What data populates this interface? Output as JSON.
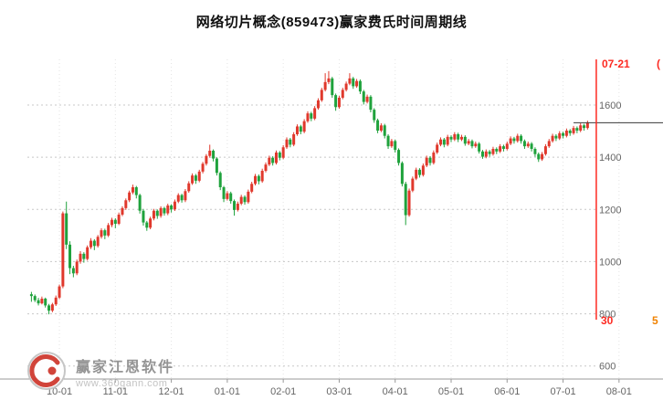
{
  "title": "网络切片概念(859473)赢家费氏时间周期线",
  "watermark": {
    "brand": "赢家江恩软件",
    "url": "www.360gann.com"
  },
  "colors": {
    "up": "#e0382c",
    "down": "#1fa23c",
    "grid": "#c8c8c8",
    "grid_v": "#e4e4e4",
    "axis": "#9a9a9a",
    "axis_text": "#666666",
    "last_price_line": "#3a3a3a",
    "cycle": "#fd2a22",
    "clipped_bottom": "#f08200"
  },
  "chart_data": {
    "type": "candlestick",
    "title": "网络切片概念(859473)赢家费氏时间周期线",
    "ylim": [
      550,
      1775
    ],
    "y_ticks": [
      1600,
      1400,
      1200,
      1000,
      800,
      600
    ],
    "x_ticks": [
      {
        "label": "10-01",
        "index": 8
      },
      {
        "label": "11-01",
        "index": 24
      },
      {
        "label": "12-01",
        "index": 40
      },
      {
        "label": "01-01",
        "index": 56
      },
      {
        "label": "02-01",
        "index": 72
      },
      {
        "label": "03-01",
        "index": 88
      },
      {
        "label": "04-01",
        "index": 104
      },
      {
        "label": "05-01",
        "index": 120
      },
      {
        "label": "06-01",
        "index": 136
      },
      {
        "label": "07-01",
        "index": 152
      },
      {
        "label": "08-01",
        "index": 168
      }
    ],
    "last_price": 1532,
    "fib_time_cycle": {
      "date_label": "07-21",
      "count_label": "30",
      "index": 161.5
    },
    "clipped_right_labels": {
      "top": "(",
      "bottom": "5"
    },
    "columns": [
      "open",
      "high",
      "low",
      "close"
    ],
    "candles": [
      [
        875,
        884,
        846,
        868
      ],
      [
        868,
        874,
        845,
        852
      ],
      [
        852,
        861,
        832,
        840
      ],
      [
        840,
        866,
        836,
        858
      ],
      [
        858,
        862,
        824,
        832
      ],
      [
        832,
        838,
        798,
        812
      ],
      [
        812,
        842,
        806,
        836
      ],
      [
        836,
        870,
        830,
        862
      ],
      [
        862,
        912,
        856,
        905
      ],
      [
        905,
        1192,
        898,
        1185
      ],
      [
        1185,
        1230,
        1048,
        1065
      ],
      [
        1065,
        1078,
        952,
        975
      ],
      [
        975,
        984,
        940,
        955
      ],
      [
        955,
        1008,
        948,
        1000
      ],
      [
        1000,
        1040,
        992,
        1030
      ],
      [
        1030,
        1036,
        996,
        1010
      ],
      [
        1010,
        1062,
        1004,
        1055
      ],
      [
        1055,
        1090,
        1048,
        1080
      ],
      [
        1080,
        1086,
        1044,
        1060
      ],
      [
        1060,
        1102,
        1054,
        1095
      ],
      [
        1095,
        1128,
        1088,
        1120
      ],
      [
        1120,
        1126,
        1086,
        1100
      ],
      [
        1100,
        1148,
        1094,
        1140
      ],
      [
        1140,
        1168,
        1132,
        1160
      ],
      [
        1160,
        1166,
        1128,
        1145
      ],
      [
        1145,
        1188,
        1140,
        1180
      ],
      [
        1180,
        1212,
        1174,
        1205
      ],
      [
        1205,
        1242,
        1198,
        1235
      ],
      [
        1235,
        1272,
        1228,
        1265
      ],
      [
        1265,
        1295,
        1258,
        1285
      ],
      [
        1285,
        1290,
        1242,
        1255
      ],
      [
        1255,
        1260,
        1184,
        1195
      ],
      [
        1195,
        1202,
        1138,
        1150
      ],
      [
        1150,
        1156,
        1118,
        1130
      ],
      [
        1130,
        1172,
        1124,
        1165
      ],
      [
        1165,
        1202,
        1158,
        1195
      ],
      [
        1195,
        1200,
        1164,
        1175
      ],
      [
        1175,
        1212,
        1168,
        1205
      ],
      [
        1205,
        1210,
        1176,
        1185
      ],
      [
        1185,
        1222,
        1178,
        1215
      ],
      [
        1215,
        1220,
        1188,
        1200
      ],
      [
        1200,
        1238,
        1194,
        1230
      ],
      [
        1230,
        1262,
        1224,
        1255
      ],
      [
        1255,
        1260,
        1226,
        1235
      ],
      [
        1235,
        1278,
        1228,
        1270
      ],
      [
        1270,
        1308,
        1264,
        1300
      ],
      [
        1300,
        1338,
        1294,
        1330
      ],
      [
        1330,
        1336,
        1298,
        1310
      ],
      [
        1310,
        1352,
        1304,
        1345
      ],
      [
        1345,
        1382,
        1338,
        1375
      ],
      [
        1375,
        1412,
        1368,
        1405
      ],
      [
        1405,
        1448,
        1398,
        1425
      ],
      [
        1425,
        1430,
        1384,
        1395
      ],
      [
        1395,
        1400,
        1330,
        1340
      ],
      [
        1340,
        1346,
        1274,
        1285
      ],
      [
        1285,
        1290,
        1228,
        1240
      ],
      [
        1240,
        1270,
        1234,
        1262
      ],
      [
        1262,
        1268,
        1222,
        1232
      ],
      [
        1232,
        1238,
        1176,
        1198
      ],
      [
        1198,
        1230,
        1192,
        1222
      ],
      [
        1222,
        1256,
        1216,
        1248
      ],
      [
        1248,
        1254,
        1218,
        1228
      ],
      [
        1228,
        1276,
        1222,
        1268
      ],
      [
        1268,
        1306,
        1262,
        1298
      ],
      [
        1298,
        1336,
        1292,
        1328
      ],
      [
        1328,
        1334,
        1296,
        1308
      ],
      [
        1308,
        1356,
        1302,
        1348
      ],
      [
        1348,
        1380,
        1342,
        1372
      ],
      [
        1372,
        1406,
        1366,
        1398
      ],
      [
        1398,
        1404,
        1368,
        1378
      ],
      [
        1378,
        1426,
        1372,
        1418
      ],
      [
        1418,
        1424,
        1388,
        1398
      ],
      [
        1398,
        1446,
        1392,
        1438
      ],
      [
        1438,
        1476,
        1432,
        1468
      ],
      [
        1468,
        1474,
        1438,
        1448
      ],
      [
        1448,
        1496,
        1442,
        1488
      ],
      [
        1488,
        1526,
        1482,
        1518
      ],
      [
        1518,
        1524,
        1488,
        1498
      ],
      [
        1498,
        1546,
        1492,
        1538
      ],
      [
        1538,
        1576,
        1532,
        1568
      ],
      [
        1568,
        1574,
        1538,
        1548
      ],
      [
        1548,
        1596,
        1542,
        1588
      ],
      [
        1588,
        1626,
        1582,
        1618
      ],
      [
        1618,
        1666,
        1612,
        1658
      ],
      [
        1658,
        1722,
        1652,
        1688
      ],
      [
        1688,
        1730,
        1680,
        1702
      ],
      [
        1702,
        1708,
        1628,
        1638
      ],
      [
        1638,
        1644,
        1578,
        1592
      ],
      [
        1592,
        1636,
        1586,
        1628
      ],
      [
        1628,
        1666,
        1622,
        1658
      ],
      [
        1658,
        1690,
        1652,
        1682
      ],
      [
        1682,
        1722,
        1676,
        1702
      ],
      [
        1702,
        1708,
        1662,
        1672
      ],
      [
        1672,
        1700,
        1666,
        1692
      ],
      [
        1692,
        1698,
        1642,
        1652
      ],
      [
        1652,
        1658,
        1602,
        1612
      ],
      [
        1612,
        1640,
        1606,
        1632
      ],
      [
        1632,
        1638,
        1572,
        1582
      ],
      [
        1582,
        1588,
        1532,
        1542
      ],
      [
        1542,
        1548,
        1492,
        1502
      ],
      [
        1502,
        1530,
        1496,
        1522
      ],
      [
        1522,
        1528,
        1472,
        1482
      ],
      [
        1482,
        1488,
        1432,
        1442
      ],
      [
        1442,
        1470,
        1436,
        1462
      ],
      [
        1462,
        1468,
        1418,
        1428
      ],
      [
        1428,
        1434,
        1368,
        1378
      ],
      [
        1378,
        1384,
        1288,
        1298
      ],
      [
        1298,
        1306,
        1140,
        1178
      ],
      [
        1178,
        1280,
        1172,
        1272
      ],
      [
        1272,
        1326,
        1266,
        1318
      ],
      [
        1318,
        1360,
        1312,
        1352
      ],
      [
        1352,
        1358,
        1322,
        1332
      ],
      [
        1332,
        1376,
        1326,
        1368
      ],
      [
        1368,
        1406,
        1362,
        1398
      ],
      [
        1398,
        1404,
        1368,
        1378
      ],
      [
        1378,
        1426,
        1372,
        1418
      ],
      [
        1418,
        1456,
        1412,
        1448
      ],
      [
        1448,
        1476,
        1442,
        1468
      ],
      [
        1468,
        1474,
        1438,
        1448
      ],
      [
        1448,
        1486,
        1442,
        1478
      ],
      [
        1478,
        1484,
        1458,
        1468
      ],
      [
        1468,
        1496,
        1462,
        1488
      ],
      [
        1488,
        1494,
        1458,
        1468
      ],
      [
        1468,
        1486,
        1462,
        1478
      ],
      [
        1478,
        1484,
        1444,
        1452
      ],
      [
        1452,
        1470,
        1446,
        1462
      ],
      [
        1462,
        1468,
        1434,
        1442
      ],
      [
        1442,
        1460,
        1436,
        1452
      ],
      [
        1452,
        1458,
        1414,
        1422
      ],
      [
        1422,
        1428,
        1394,
        1402
      ],
      [
        1402,
        1430,
        1396,
        1422
      ],
      [
        1422,
        1428,
        1402,
        1412
      ],
      [
        1412,
        1440,
        1406,
        1432
      ],
      [
        1432,
        1438,
        1412,
        1422
      ],
      [
        1422,
        1450,
        1416,
        1442
      ],
      [
        1442,
        1448,
        1422,
        1432
      ],
      [
        1432,
        1460,
        1426,
        1452
      ],
      [
        1452,
        1480,
        1446,
        1472
      ],
      [
        1472,
        1478,
        1452,
        1462
      ],
      [
        1462,
        1490,
        1456,
        1482
      ],
      [
        1482,
        1488,
        1452,
        1462
      ],
      [
        1462,
        1468,
        1432,
        1442
      ],
      [
        1442,
        1460,
        1436,
        1452
      ],
      [
        1452,
        1458,
        1422,
        1432
      ],
      [
        1432,
        1438,
        1402,
        1412
      ],
      [
        1412,
        1418,
        1382,
        1392
      ],
      [
        1392,
        1420,
        1386,
        1412
      ],
      [
        1412,
        1450,
        1406,
        1442
      ],
      [
        1442,
        1470,
        1436,
        1462
      ],
      [
        1462,
        1490,
        1456,
        1482
      ],
      [
        1482,
        1488,
        1462,
        1472
      ],
      [
        1472,
        1500,
        1466,
        1492
      ],
      [
        1492,
        1498,
        1472,
        1482
      ],
      [
        1482,
        1510,
        1476,
        1502
      ],
      [
        1502,
        1508,
        1482,
        1492
      ],
      [
        1492,
        1520,
        1486,
        1512
      ],
      [
        1512,
        1518,
        1492,
        1502
      ],
      [
        1502,
        1530,
        1496,
        1522
      ],
      [
        1522,
        1528,
        1502,
        1512
      ],
      [
        1512,
        1540,
        1506,
        1532
      ]
    ]
  }
}
